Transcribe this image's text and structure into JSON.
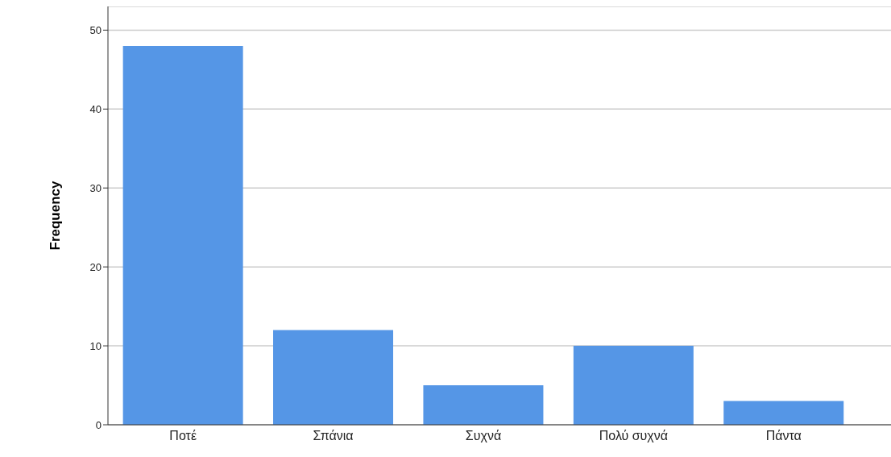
{
  "chart_data": {
    "type": "bar",
    "ylabel": "Frequency",
    "categories": [
      "Ποτέ",
      "Σπάνια",
      "Συχνά",
      "Πολύ συχνά",
      "Πάντα"
    ],
    "values": [
      48,
      12,
      5,
      10,
      3
    ],
    "color": "#5596e6",
    "ylim": [
      0,
      53
    ],
    "yticks": [
      0,
      10,
      20,
      30,
      40,
      50
    ],
    "grid": "y"
  }
}
